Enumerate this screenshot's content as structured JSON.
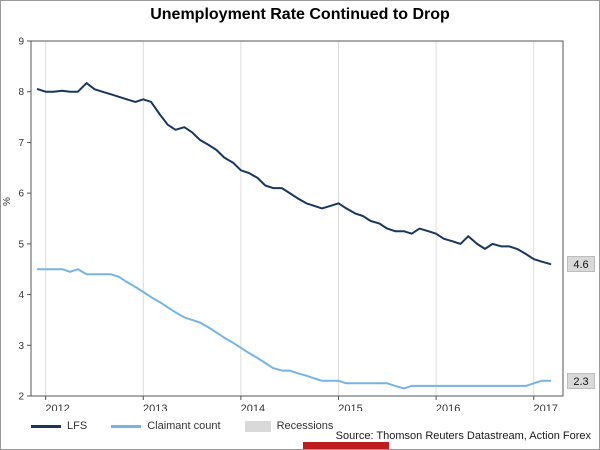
{
  "title": "Unemployment Rate Continued to Drop",
  "source": "Source: Thomson Reuters Datastream, Action Forex",
  "end_labels": {
    "lfs": "4.6",
    "claimant": "2.3"
  },
  "legend": {
    "lfs_label": "LFS",
    "claimant_label": "Claimant count",
    "recessions_label": "Recessions"
  },
  "colors": {
    "lfs": "#17375e",
    "claimant": "#76b4e3",
    "recessions": "#d9d9d9",
    "grid": "#dcdcdc",
    "axis": "#555555",
    "brand_red": "#bf1d1d",
    "end_label_bg": "#d9d9d9"
  },
  "chart_data": {
    "type": "line",
    "title": "Unemployment Rate Continued to Drop",
    "xlabel": "",
    "ylabel": "%",
    "ylim": [
      2,
      9
    ],
    "xlim": [
      2011.85,
      2017.3
    ],
    "yticks": [
      2,
      3,
      4,
      5,
      6,
      7,
      8,
      9
    ],
    "xticks": [
      2012,
      2013,
      2014,
      2015,
      2016,
      2017
    ],
    "grid": "vertical",
    "legend_position": "bottom-left",
    "x": [
      2011.92,
      2012.0,
      2012.08,
      2012.17,
      2012.25,
      2012.33,
      2012.42,
      2012.5,
      2012.58,
      2012.67,
      2012.75,
      2012.83,
      2012.92,
      2013.0,
      2013.08,
      2013.17,
      2013.25,
      2013.33,
      2013.42,
      2013.5,
      2013.58,
      2013.67,
      2013.75,
      2013.83,
      2013.92,
      2014.0,
      2014.08,
      2014.17,
      2014.25,
      2014.33,
      2014.42,
      2014.5,
      2014.58,
      2014.67,
      2014.75,
      2014.83,
      2014.92,
      2015.0,
      2015.08,
      2015.17,
      2015.25,
      2015.33,
      2015.42,
      2015.5,
      2015.58,
      2015.67,
      2015.75,
      2015.83,
      2015.92,
      2016.0,
      2016.08,
      2016.17,
      2016.25,
      2016.33,
      2016.42,
      2016.5,
      2016.58,
      2016.67,
      2016.75,
      2016.83,
      2016.92,
      2017.0,
      2017.08,
      2017.17
    ],
    "series": [
      {
        "name": "LFS",
        "color": "#17375e",
        "width": 2,
        "values": [
          8.05,
          8.0,
          8.0,
          8.02,
          8.0,
          8.0,
          8.17,
          8.05,
          8.0,
          7.95,
          7.9,
          7.85,
          7.8,
          7.85,
          7.8,
          7.55,
          7.35,
          7.25,
          7.3,
          7.2,
          7.05,
          6.95,
          6.85,
          6.7,
          6.6,
          6.45,
          6.4,
          6.3,
          6.15,
          6.1,
          6.1,
          6.0,
          5.9,
          5.8,
          5.75,
          5.7,
          5.75,
          5.8,
          5.7,
          5.6,
          5.55,
          5.45,
          5.4,
          5.3,
          5.25,
          5.25,
          5.2,
          5.3,
          5.25,
          5.2,
          5.1,
          5.05,
          5.0,
          5.15,
          5.0,
          4.9,
          5.0,
          4.95,
          4.95,
          4.9,
          4.8,
          4.7,
          4.65,
          4.6
        ]
      },
      {
        "name": "Claimant count",
        "color": "#76b4e3",
        "width": 2,
        "values": [
          4.5,
          4.5,
          4.5,
          4.5,
          4.45,
          4.5,
          4.4,
          4.4,
          4.4,
          4.4,
          4.35,
          4.25,
          4.15,
          4.05,
          3.95,
          3.85,
          3.75,
          3.65,
          3.55,
          3.5,
          3.45,
          3.35,
          3.25,
          3.15,
          3.05,
          2.95,
          2.85,
          2.75,
          2.65,
          2.55,
          2.5,
          2.5,
          2.45,
          2.4,
          2.35,
          2.3,
          2.3,
          2.3,
          2.25,
          2.25,
          2.25,
          2.25,
          2.25,
          2.25,
          2.2,
          2.15,
          2.2,
          2.2,
          2.2,
          2.2,
          2.2,
          2.2,
          2.2,
          2.2,
          2.2,
          2.2,
          2.2,
          2.2,
          2.2,
          2.2,
          2.2,
          2.25,
          2.3,
          2.3
        ]
      }
    ],
    "recessions": []
  }
}
